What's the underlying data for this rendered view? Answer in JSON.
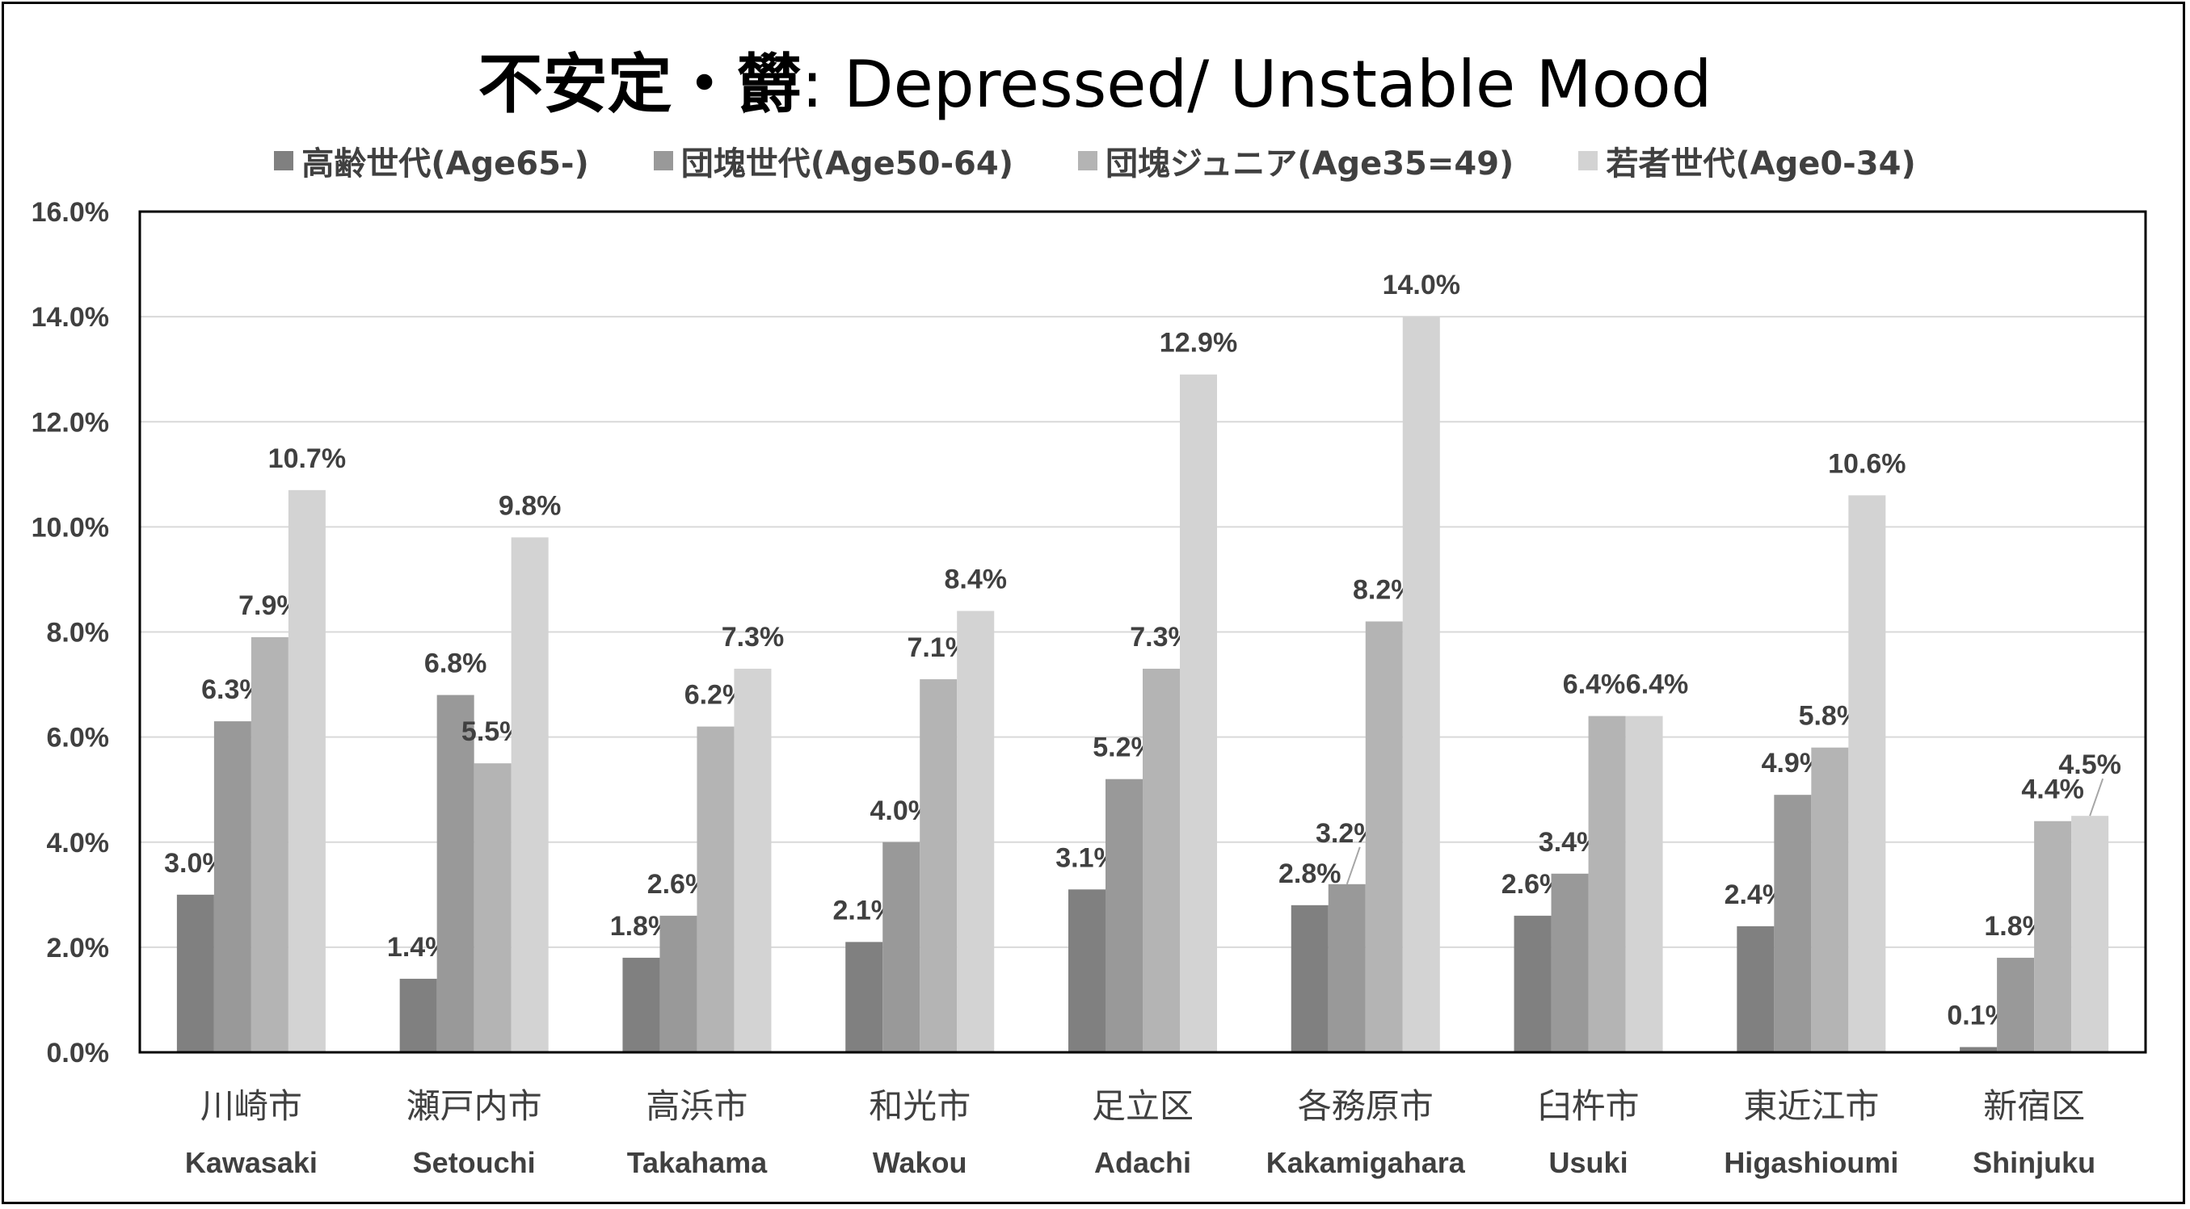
{
  "title_jp": "不安定・欝",
  "title_en": ": Depressed/ Unstable Mood",
  "chart_data": {
    "type": "bar",
    "title": "不安定・欝 : Depressed/ Unstable Mood",
    "categories": [
      {
        "jp": "川崎市",
        "en": "Kawasaki"
      },
      {
        "jp": "瀬戸内市",
        "en": "Setouchi"
      },
      {
        "jp": "高浜市",
        "en": "Takahama"
      },
      {
        "jp": "和光市",
        "en": "Wakou"
      },
      {
        "jp": "足立区",
        "en": "Adachi"
      },
      {
        "jp": "各務原市",
        "en": "Kakamigahara"
      },
      {
        "jp": "臼杵市",
        "en": "Usuki"
      },
      {
        "jp": "東近江市",
        "en": "Higashioumi"
      },
      {
        "jp": "新宿区",
        "en": "Shinjuku"
      }
    ],
    "series": [
      {
        "name": "高齢世代(Age65-)",
        "color": "#808080",
        "values": [
          3.0,
          1.4,
          1.8,
          2.1,
          3.1,
          2.8,
          2.6,
          2.4,
          0.1
        ],
        "labels": [
          "3.0%",
          "1.4%",
          "1.8%",
          "2.1%",
          "3.1%",
          "2.8%",
          "2.6%",
          "2.4%",
          "0.1%"
        ]
      },
      {
        "name": "団塊世代(Age50-64)",
        "color": "#999999",
        "values": [
          6.3,
          6.8,
          2.6,
          4.0,
          5.2,
          3.2,
          3.4,
          4.9,
          1.8
        ],
        "labels": [
          "6.3%",
          "6.8%",
          "2.6%",
          "4.0%",
          "5.2%",
          "3.2%",
          "3.4%",
          "4.9%",
          "1.8%"
        ]
      },
      {
        "name": "団塊ジュニア(Age35=49)",
        "color": "#b4b4b4",
        "values": [
          7.9,
          5.5,
          6.2,
          7.1,
          7.3,
          8.2,
          6.4,
          5.8,
          4.4
        ],
        "labels": [
          "7.9%",
          "5.5%",
          "6.2%",
          "7.1%",
          "7.3%",
          "8.2%",
          "6.4%",
          "5.8%",
          "4.4%"
        ]
      },
      {
        "name": "若者世代(Age0-34)",
        "color": "#d3d3d3",
        "values": [
          10.7,
          9.8,
          7.3,
          8.4,
          12.9,
          14.0,
          6.4,
          10.6,
          4.5
        ],
        "labels": [
          "10.7%",
          "9.8%",
          "7.3%",
          "8.4%",
          "12.9%",
          "14.0%",
          "6.4%",
          "10.6%",
          "4.5%"
        ]
      }
    ],
    "ylim": [
      0,
      16
    ],
    "yticks": [
      0,
      2,
      4,
      6,
      8,
      10,
      12,
      14,
      16
    ],
    "ytick_labels": [
      "0.0%",
      "2.0%",
      "4.0%",
      "6.0%",
      "8.0%",
      "10.0%",
      "12.0%",
      "14.0%",
      "16.0%"
    ],
    "grid": true,
    "legend_position": "top"
  }
}
